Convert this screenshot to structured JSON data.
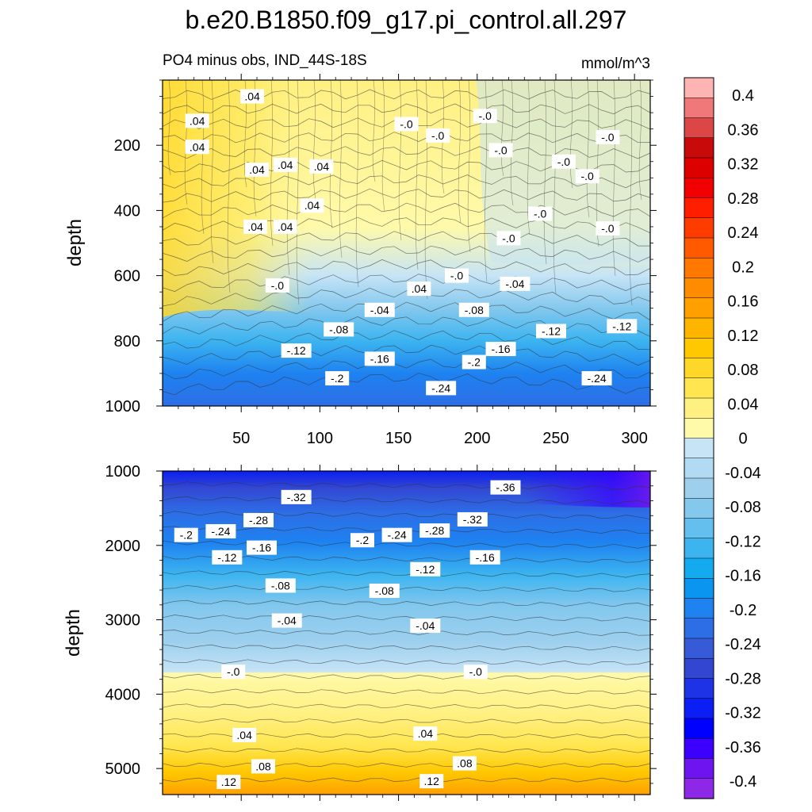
{
  "chart_data": [
    {
      "type": "heatmap",
      "panel": "upper",
      "title": "b.e20.B1850.f09_g17.pi_control.all.297",
      "left_subtitle": "PO4 minus obs, IND_44S-18S",
      "right_subtitle": "mmol/m^3",
      "xlabel": "",
      "ylabel": "depth",
      "xlim": [
        0,
        310
      ],
      "ylim": [
        1000,
        0
      ],
      "xticks": [
        50,
        100,
        150,
        200,
        250,
        300
      ],
      "xtick_labels": [
        "50",
        "100",
        "150",
        "200",
        "250",
        "300"
      ],
      "yticks": [
        200,
        400,
        600,
        800,
        1000
      ],
      "ytick_labels": [
        "200",
        "400",
        "600",
        "800",
        "1000"
      ],
      "contour_labels": [
        {
          "x": 57,
          "y": 50,
          "text": ".04"
        },
        {
          "x": 22,
          "y": 125,
          "text": ".04"
        },
        {
          "x": 22,
          "y": 205,
          "text": ".04"
        },
        {
          "x": 60,
          "y": 275,
          "text": ".04"
        },
        {
          "x": 78,
          "y": 260,
          "text": ".04"
        },
        {
          "x": 101,
          "y": 265,
          "text": ".04"
        },
        {
          "x": 95,
          "y": 385,
          "text": ".04"
        },
        {
          "x": 59,
          "y": 450,
          "text": ".04"
        },
        {
          "x": 78,
          "y": 450,
          "text": ".04"
        },
        {
          "x": 155,
          "y": 135,
          "text": "-.0"
        },
        {
          "x": 205,
          "y": 110,
          "text": "-.0"
        },
        {
          "x": 175,
          "y": 170,
          "text": "-.0"
        },
        {
          "x": 215,
          "y": 215,
          "text": "-.0"
        },
        {
          "x": 283,
          "y": 175,
          "text": "-.0"
        },
        {
          "x": 255,
          "y": 250,
          "text": "-.0"
        },
        {
          "x": 270,
          "y": 295,
          "text": "-.0"
        },
        {
          "x": 240,
          "y": 410,
          "text": "-.0"
        },
        {
          "x": 283,
          "y": 455,
          "text": "-.0"
        },
        {
          "x": 220,
          "y": 485,
          "text": "-.0"
        },
        {
          "x": 187,
          "y": 600,
          "text": "-.0"
        },
        {
          "x": 73,
          "y": 630,
          "text": "-.0"
        },
        {
          "x": 163,
          "y": 640,
          "text": ".04"
        },
        {
          "x": 224,
          "y": 625,
          "text": "-.04"
        },
        {
          "x": 138,
          "y": 705,
          "text": "-.04"
        },
        {
          "x": 198,
          "y": 705,
          "text": "-.08"
        },
        {
          "x": 112,
          "y": 765,
          "text": "-.08"
        },
        {
          "x": 247,
          "y": 770,
          "text": "-.12"
        },
        {
          "x": 292,
          "y": 755,
          "text": "-.12"
        },
        {
          "x": 85,
          "y": 830,
          "text": "-.12"
        },
        {
          "x": 215,
          "y": 825,
          "text": "-.16"
        },
        {
          "x": 138,
          "y": 855,
          "text": "-.16"
        },
        {
          "x": 198,
          "y": 865,
          "text": "-.2"
        },
        {
          "x": 111,
          "y": 915,
          "text": "-.2"
        },
        {
          "x": 276,
          "y": 915,
          "text": "-.24"
        },
        {
          "x": 177,
          "y": 945,
          "text": "-.24"
        }
      ]
    },
    {
      "type": "heatmap",
      "panel": "lower",
      "xlabel": "",
      "ylabel": "depth",
      "xlim": [
        0,
        310
      ],
      "ylim": [
        5350,
        1000
      ],
      "xticks": [
        50,
        100,
        150,
        200,
        250,
        300
      ],
      "yticks": [
        1000,
        2000,
        3000,
        4000,
        5000
      ],
      "ytick_labels": [
        "1000",
        "2000",
        "3000",
        "4000",
        "5000"
      ],
      "contour_labels": [
        {
          "x": 85,
          "y": 1350,
          "text": "-.32"
        },
        {
          "x": 218,
          "y": 1220,
          "text": "-.36"
        },
        {
          "x": 61,
          "y": 1660,
          "text": "-.28"
        },
        {
          "x": 37,
          "y": 1810,
          "text": "-.24"
        },
        {
          "x": 15,
          "y": 1860,
          "text": "-.2"
        },
        {
          "x": 197,
          "y": 1650,
          "text": "-.32"
        },
        {
          "x": 173,
          "y": 1800,
          "text": "-.28"
        },
        {
          "x": 149,
          "y": 1860,
          "text": "-.24"
        },
        {
          "x": 127,
          "y": 1930,
          "text": "-.2"
        },
        {
          "x": 63,
          "y": 2030,
          "text": "-.16"
        },
        {
          "x": 205,
          "y": 2160,
          "text": "-.16"
        },
        {
          "x": 41,
          "y": 2160,
          "text": "-.12"
        },
        {
          "x": 167,
          "y": 2320,
          "text": "-.12"
        },
        {
          "x": 75,
          "y": 2540,
          "text": "-.08"
        },
        {
          "x": 141,
          "y": 2610,
          "text": "-.08"
        },
        {
          "x": 79,
          "y": 3010,
          "text": "-.04"
        },
        {
          "x": 167,
          "y": 3080,
          "text": "-.04"
        },
        {
          "x": 45,
          "y": 3700,
          "text": "-.0"
        },
        {
          "x": 199,
          "y": 3700,
          "text": "-.0"
        },
        {
          "x": 52,
          "y": 4550,
          "text": ".04"
        },
        {
          "x": 167,
          "y": 4530,
          "text": ".04"
        },
        {
          "x": 64,
          "y": 4970,
          "text": ".08"
        },
        {
          "x": 192,
          "y": 4930,
          "text": ".08"
        },
        {
          "x": 42,
          "y": 5180,
          "text": ".12"
        },
        {
          "x": 171,
          "y": 5170,
          "text": ".12"
        }
      ]
    }
  ],
  "colorbar": {
    "labels": [
      "0.4",
      "0.36",
      "0.32",
      "0.28",
      "0.24",
      "0.2",
      "0.16",
      "0.12",
      "0.08",
      "0.04",
      "0",
      "-0.04",
      "-0.08",
      "-0.12",
      "-0.16",
      "-0.2",
      "-0.24",
      "-0.28",
      "-0.32",
      "-0.36",
      "-0.4"
    ],
    "colors": [
      "#ffb4b4",
      "#f07878",
      "#dc4646",
      "#c80a0a",
      "#dc0000",
      "#f00000",
      "#ff1e00",
      "#ff3c00",
      "#ff5a00",
      "#ff7800",
      "#ff8c00",
      "#ffa000",
      "#ffb400",
      "#ffc800",
      "#ffd728",
      "#ffe650",
      "#fff082",
      "#fffaaa",
      "#c6e4f6",
      "#b2daf2",
      "#9ed0ee",
      "#84c8ee",
      "#64beee",
      "#3cb4f0",
      "#14aaf0",
      "#0a96f0",
      "#1e82f0",
      "#2d6ee6",
      "#375ad7",
      "#3246d2",
      "#1e32e6",
      "#0a1ef5",
      "#0000ff",
      "#3c00ff",
      "#6e14f0",
      "#8c28e6"
    ]
  },
  "colors": {
    "warm_deep": "#ffc800",
    "warm_mid": "#ffe650",
    "warm_light": "#fffaaa",
    "zero_light": "#c6e4f6",
    "blue_1": "#84c8ee",
    "blue_2": "#3cb4f0",
    "blue_3": "#1e82f0",
    "blue_4": "#3246d2",
    "blue_5": "#0000ff",
    "purple": "#6e14f0",
    "orange": "#ffa000"
  }
}
